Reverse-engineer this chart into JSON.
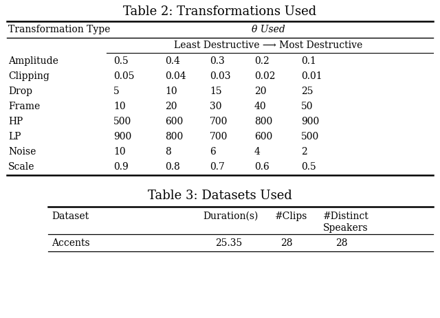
{
  "table2_title": "Table 2: Transformations Used",
  "table2_col1_header": "Transformation Type",
  "table2_col2_header": "θ Used",
  "table2_subheader": "Least Destructive ⟶ Most Destructive",
  "table2_rows": [
    [
      "Amplitude",
      "0.5",
      "0.4",
      "0.3",
      "0.2",
      "0.1"
    ],
    [
      "Clipping",
      "0.05",
      "0.04",
      "0.03",
      "0.02",
      "0.01"
    ],
    [
      "Drop",
      "5",
      "10",
      "15",
      "20",
      "25"
    ],
    [
      "Frame",
      "10",
      "20",
      "30",
      "40",
      "50"
    ],
    [
      "HP",
      "500",
      "600",
      "700",
      "800",
      "900"
    ],
    [
      "LP",
      "900",
      "800",
      "700",
      "600",
      "500"
    ],
    [
      "Noise",
      "10",
      "8",
      "6",
      "4",
      "2"
    ],
    [
      "Scale",
      "0.9",
      "0.8",
      "0.7",
      "0.6",
      "0.5"
    ]
  ],
  "table3_title": "Table 3: Datasets Used",
  "table3_headers": [
    "Dataset",
    "Duration(s)",
    "#Clips",
    "#Distinct\nSpeakers"
  ],
  "table3_rows": [
    [
      "Accents",
      "25.35",
      "28",
      "28"
    ]
  ],
  "bg_color": "#ffffff",
  "text_color": "#000000",
  "line_color": "#000000",
  "title_fontsize": 13,
  "body_fontsize": 10,
  "subheader_fontsize": 10
}
